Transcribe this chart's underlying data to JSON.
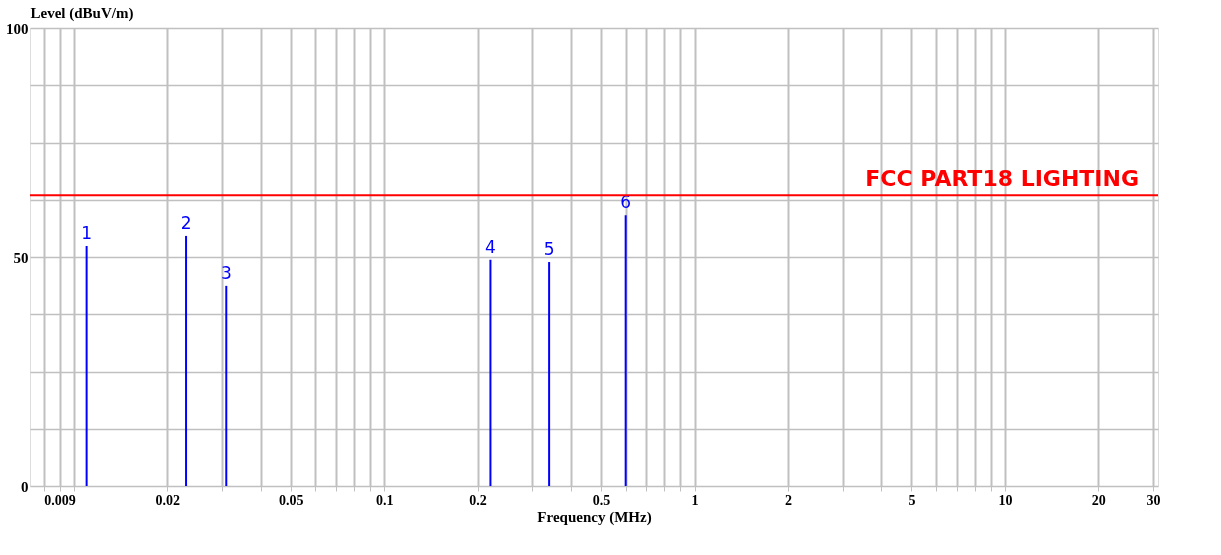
{
  "chart_data": {
    "type": "bar",
    "xlabel": "Frequency (MHz)",
    "ylabel": "Level (dBuV/m)",
    "x": [
      0.011,
      0.023,
      0.031,
      0.22,
      0.34,
      0.6
    ],
    "series": [
      {
        "color": "#0000ff",
        "values": [
          52.4,
          54.6,
          43.7,
          49.4,
          48.9,
          59.1
        ]
      }
    ],
    "annotations": [
      {
        "text": "1",
        "x": 0.011,
        "y": 52.4
      },
      {
        "text": "2",
        "x": 0.023,
        "y": 54.6
      },
      {
        "text": "3",
        "x": 0.031,
        "y": 43.7
      },
      {
        "text": "4",
        "x": 0.22,
        "y": 49.4
      },
      {
        "text": "5",
        "x": 0.34,
        "y": 48.9
      },
      {
        "text": "6",
        "x": 0.6,
        "y": 59.1
      }
    ],
    "xlim": [
      0.0075,
      30
    ],
    "log": "x",
    "xticks": [
      {
        "value": 0.008,
        "label": null
      },
      0.009,
      {
        "value": 0.01,
        "label": null
      },
      0.02,
      {
        "value": 0.03,
        "label": null
      },
      {
        "value": 0.04,
        "label": null
      },
      0.05,
      {
        "value": 0.06,
        "label": null
      },
      {
        "value": 0.07,
        "label": null
      },
      {
        "value": 0.08,
        "label": null
      },
      {
        "value": 0.09,
        "label": null
      },
      0.1,
      0.2,
      {
        "value": 0.3,
        "label": null
      },
      {
        "value": 0.4,
        "label": null
      },
      0.5,
      {
        "value": 0.6,
        "label": null
      },
      {
        "value": 0.7,
        "label": null
      },
      {
        "value": 0.8,
        "label": null
      },
      {
        "value": 0.9,
        "label": null
      },
      1,
      2,
      {
        "value": 3,
        "label": null
      },
      {
        "value": 4,
        "label": null
      },
      5,
      {
        "value": 6,
        "label": null
      },
      {
        "value": 7,
        "label": null
      },
      {
        "value": 8,
        "label": null
      },
      {
        "value": 9,
        "label": null
      },
      10,
      20,
      30
    ],
    "ylim": [
      0,
      100
    ],
    "yticks": [
      0,
      {
        "value": 12.5,
        "label": null
      },
      {
        "value": 25,
        "label": null
      },
      {
        "value": 37.5,
        "label": null
      },
      50,
      {
        "value": 62.5,
        "label": null
      },
      {
        "value": 75,
        "label": null
      },
      {
        "value": 87.5,
        "label": null
      },
      100
    ],
    "grid": true,
    "ref_lines": [
      {
        "axis": "y",
        "value": 63.5,
        "label": "FCC  PART18 LIGHTING",
        "color": "#ff0000",
        "line_style": "solid"
      }
    ]
  }
}
